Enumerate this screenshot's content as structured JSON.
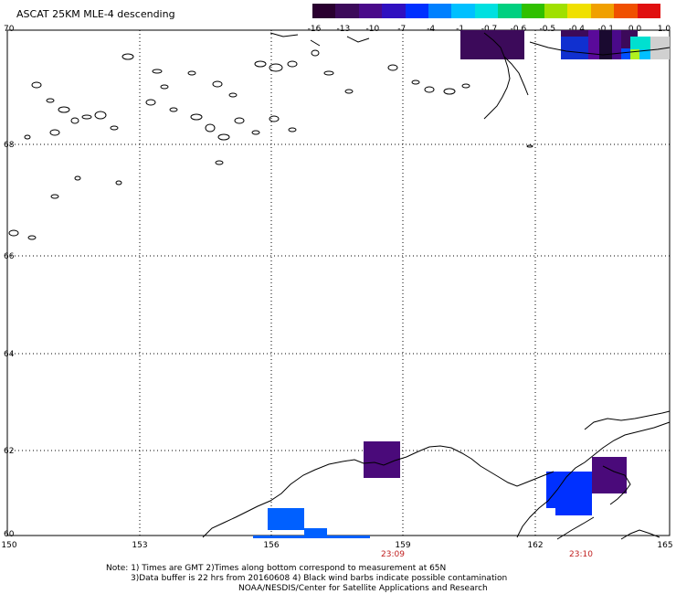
{
  "title": "ASCAT 25KM MLE-4 descending",
  "colorbar": {
    "labels": [
      "-16",
      "-13",
      "-10",
      "-7",
      "-4",
      "-1",
      "-0.7",
      "-0.6",
      "-0.5",
      "-0.4",
      "-0.1",
      "0.0",
      "1.0"
    ],
    "colors": [
      "#2a0030",
      "#3c0a5a",
      "#4a0a8a",
      "#3010c0",
      "#0030ff",
      "#0080ff",
      "#00c0ff",
      "#00e0e0",
      "#00d080",
      "#30c000",
      "#a0e000",
      "#f0e000",
      "#f0a000",
      "#f05000",
      "#e01010"
    ]
  },
  "map": {
    "lat_labels": [
      "70",
      "68",
      "66",
      "64",
      "62",
      "60"
    ],
    "lon_labels": [
      "150",
      "153",
      "156",
      "159",
      "162",
      "165"
    ],
    "time_labels": [
      "23:09",
      "23:10"
    ],
    "lat_range": [
      60,
      70
    ],
    "lon_range": [
      150,
      165
    ]
  },
  "notes": [
    "Note: 1) Times are GMT 2)Times along bottom correspond to measurement at 65N",
    "3)Data buffer is 22 hrs from 20160608 4) Black wind barbs indicate possible contamination",
    "NOAA/NESDIS/Center for Satellite Applications and Research"
  ]
}
